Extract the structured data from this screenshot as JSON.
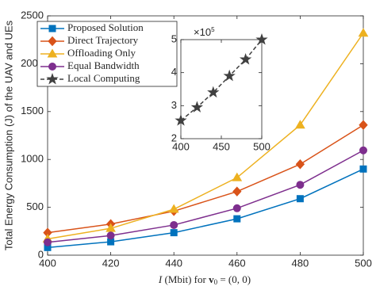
{
  "chart_data": {
    "type": "line",
    "ylabel": "Total Energy Consumption (J) of the UAV and UEs",
    "xlabel": [
      "I",
      " (Mbit) for ",
      "v",
      "0",
      " = (0, 0)"
    ],
    "x": [
      400,
      420,
      440,
      460,
      480,
      500
    ],
    "xlim": [
      400,
      500
    ],
    "xticks": [
      400,
      420,
      440,
      460,
      480,
      500
    ],
    "ylim": [
      0,
      2500
    ],
    "yticks": [
      0,
      500,
      1000,
      1500,
      2000,
      2500
    ],
    "grid": false,
    "legend": "upper left",
    "series": [
      {
        "name": "Proposed Solution",
        "color": "#0072BD",
        "marker": "square",
        "values": [
          80,
          140,
          235,
          380,
          590,
          900
        ]
      },
      {
        "name": "Direct Trajectory",
        "color": "#D95319",
        "marker": "diamond",
        "values": [
          235,
          325,
          460,
          665,
          950,
          1360
        ]
      },
      {
        "name": "Offloading Only",
        "color": "#EDB120",
        "marker": "triangle",
        "values": [
          170,
          280,
          480,
          810,
          1360,
          2320
        ]
      },
      {
        "name": "Equal Bandwidth",
        "color": "#7E2F8E",
        "marker": "circle",
        "values": [
          135,
          205,
          315,
          490,
          735,
          1095
        ]
      },
      {
        "name": "Local Computing",
        "color": "#404040",
        "marker": "star",
        "dashed": true,
        "axis": "inset",
        "values": [
          2.55,
          2.95,
          3.4,
          3.9,
          4.4,
          5.0
        ]
      }
    ],
    "inset": {
      "xlim": [
        400,
        500
      ],
      "xticks": [
        400,
        450,
        500
      ],
      "ylim": [
        2,
        5
      ],
      "yticks": [
        2,
        3,
        4,
        5
      ],
      "multiplier": [
        "×10",
        "5"
      ]
    }
  }
}
